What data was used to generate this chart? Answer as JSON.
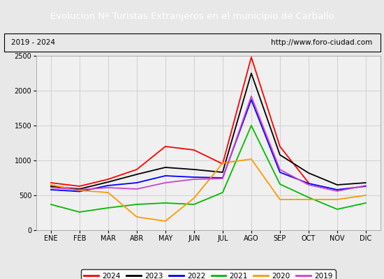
{
  "title": "Evolucion Nº Turistas Extranjeros en el municipio de Carballo",
  "subtitle_left": "2019 - 2024",
  "subtitle_right": "http://www.foro-ciudad.com",
  "title_bg_color": "#4472c4",
  "title_text_color": "#ffffff",
  "months": [
    "ENE",
    "FEB",
    "MAR",
    "ABR",
    "MAY",
    "JUN",
    "JUL",
    "AGO",
    "SEP",
    "OCT",
    "NOV",
    "DIC"
  ],
  "ylim": [
    0,
    2500
  ],
  "yticks": [
    0,
    500,
    1000,
    1500,
    2000,
    2500
  ],
  "series": {
    "2024": {
      "color": "#ff0000",
      "values": [
        680,
        630,
        730,
        870,
        1200,
        1150,
        950,
        2480,
        1200,
        680,
        null,
        null
      ]
    },
    "2023": {
      "color": "#000000",
      "values": [
        630,
        590,
        690,
        800,
        900,
        870,
        830,
        2250,
        1080,
        820,
        650,
        680
      ]
    },
    "2022": {
      "color": "#0000ff",
      "values": [
        580,
        555,
        640,
        680,
        780,
        760,
        750,
        1870,
        830,
        670,
        580,
        630
      ]
    },
    "2021": {
      "color": "#00bb00",
      "values": [
        370,
        260,
        320,
        370,
        390,
        370,
        540,
        1500,
        660,
        470,
        300,
        390
      ]
    },
    "2020": {
      "color": "#ff9900",
      "values": [
        650,
        570,
        540,
        190,
        130,
        460,
        960,
        1020,
        440,
        440,
        440,
        500
      ]
    },
    "2019": {
      "color": "#cc44cc",
      "values": [
        610,
        580,
        610,
        590,
        680,
        730,
        740,
        1920,
        870,
        650,
        560,
        640
      ]
    }
  },
  "legend_order": [
    "2024",
    "2023",
    "2022",
    "2021",
    "2020",
    "2019"
  ],
  "bg_color": "#e8e8e8",
  "plot_bg_color": "#f0f0f0",
  "grid_color": "#d0d0d0",
  "subtitle_bg_color": "#e8e8e8"
}
